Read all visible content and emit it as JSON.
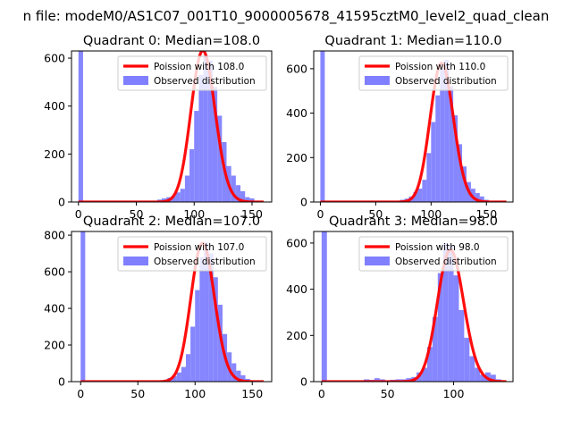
{
  "figure": {
    "suptitle": "n file: modeM0/AS1C07_001T10_9000005678_41595cztM0_level2_quad_clean"
  },
  "colors": {
    "observed": "#7f7fff",
    "poisson": "#ff0000",
    "axis": "#000000"
  },
  "chart_data": [
    {
      "type": "bar",
      "title": "Quadrant 0: Median=108.0",
      "xlim": [
        -6,
        167
      ],
      "ylim": [
        0,
        630
      ],
      "xticks": [
        0,
        50,
        100,
        150
      ],
      "yticks": [
        0,
        200,
        400,
        600
      ],
      "legend_position": "top-right",
      "series": [
        {
          "name": "Poission with 108.0",
          "kind": "poisson_line",
          "lambda": 108.0,
          "x_range": [
            0,
            160
          ]
        },
        {
          "name": "Observed distribution",
          "kind": "histogram",
          "bin_width": 4,
          "bins": [
            [
              0,
              640
            ],
            [
              64,
              4
            ],
            [
              68,
              10
            ],
            [
              72,
              15
            ],
            [
              76,
              20
            ],
            [
              80,
              25
            ],
            [
              84,
              40
            ],
            [
              88,
              55
            ],
            [
              92,
              110
            ],
            [
              96,
              220
            ],
            [
              100,
              380
            ],
            [
              104,
              530
            ],
            [
              108,
              610
            ],
            [
              112,
              590
            ],
            [
              116,
              480
            ],
            [
              120,
              360
            ],
            [
              124,
              250
            ],
            [
              128,
              150
            ],
            [
              132,
              110
            ],
            [
              136,
              70
            ],
            [
              140,
              45
            ],
            [
              144,
              20
            ],
            [
              148,
              15
            ],
            [
              152,
              5
            ]
          ]
        }
      ]
    },
    {
      "type": "bar",
      "title": "Quadrant 1: Median=110.0",
      "xlim": [
        -6,
        174
      ],
      "ylim": [
        0,
        680
      ],
      "xticks": [
        0,
        50,
        100,
        150
      ],
      "yticks": [
        0,
        200,
        400,
        600
      ],
      "legend_position": "top-right",
      "series": [
        {
          "name": "Poission with 110.0",
          "kind": "poisson_line",
          "lambda": 110.0,
          "x_range": [
            0,
            168
          ]
        },
        {
          "name": "Observed distribution",
          "kind": "histogram",
          "bin_width": 4,
          "bins": [
            [
              0,
              680
            ],
            [
              72,
              10
            ],
            [
              76,
              15
            ],
            [
              80,
              25
            ],
            [
              84,
              45
            ],
            [
              88,
              60
            ],
            [
              92,
              100
            ],
            [
              96,
              220
            ],
            [
              100,
              360
            ],
            [
              104,
              480
            ],
            [
              108,
              600
            ],
            [
              112,
              640
            ],
            [
              116,
              520
            ],
            [
              120,
              390
            ],
            [
              124,
              260
            ],
            [
              128,
              160
            ],
            [
              132,
              90
            ],
            [
              136,
              60
            ],
            [
              140,
              40
            ],
            [
              144,
              25
            ],
            [
              148,
              10
            ]
          ]
        }
      ]
    },
    {
      "type": "bar",
      "title": "Quadrant 2: Median=107.0",
      "xlim": [
        -8,
        167
      ],
      "ylim": [
        0,
        820
      ],
      "xticks": [
        0,
        50,
        100,
        150
      ],
      "yticks": [
        0,
        200,
        400,
        600,
        800
      ],
      "legend_position": "top-right",
      "series": [
        {
          "name": "Poission with 107.0",
          "kind": "poisson_line",
          "lambda": 107.0,
          "x_range": [
            0,
            160
          ]
        },
        {
          "name": "Observed distribution",
          "kind": "histogram",
          "bin_width": 4,
          "bins": [
            [
              0,
              820
            ],
            [
              72,
              10
            ],
            [
              76,
              20
            ],
            [
              80,
              30
            ],
            [
              84,
              50
            ],
            [
              88,
              80
            ],
            [
              92,
              150
            ],
            [
              96,
              300
            ],
            [
              100,
              500
            ],
            [
              104,
              680
            ],
            [
              108,
              760
            ],
            [
              112,
              700
            ],
            [
              116,
              570
            ],
            [
              120,
              420
            ],
            [
              124,
              260
            ],
            [
              128,
              160
            ],
            [
              132,
              100
            ],
            [
              136,
              60
            ],
            [
              140,
              35
            ],
            [
              144,
              15
            ]
          ]
        }
      ]
    },
    {
      "type": "bar",
      "title": "Quadrant 3: Median=98.0",
      "xlim": [
        -6,
        145
      ],
      "ylim": [
        0,
        650
      ],
      "xticks": [
        0,
        50,
        100
      ],
      "yticks": [
        0,
        200,
        400,
        600
      ],
      "legend_position": "top-right",
      "series": [
        {
          "name": "Poission with 98.0",
          "kind": "poisson_line",
          "lambda": 98.0,
          "x_range": [
            0,
            140
          ]
        },
        {
          "name": "Observed distribution",
          "kind": "histogram",
          "bin_width": 4,
          "bins": [
            [
              0,
              650
            ],
            [
              32,
              10
            ],
            [
              36,
              8
            ],
            [
              40,
              15
            ],
            [
              44,
              10
            ],
            [
              48,
              5
            ],
            [
              52,
              8
            ],
            [
              56,
              10
            ],
            [
              60,
              10
            ],
            [
              64,
              15
            ],
            [
              68,
              20
            ],
            [
              72,
              40
            ],
            [
              76,
              60
            ],
            [
              80,
              150
            ],
            [
              84,
              280
            ],
            [
              88,
              470
            ],
            [
              92,
              600
            ],
            [
              96,
              590
            ],
            [
              100,
              460
            ],
            [
              104,
              310
            ],
            [
              108,
              190
            ],
            [
              112,
              110
            ],
            [
              116,
              60
            ],
            [
              120,
              30
            ],
            [
              124,
              40
            ],
            [
              128,
              30
            ],
            [
              132,
              10
            ]
          ]
        }
      ]
    }
  ]
}
